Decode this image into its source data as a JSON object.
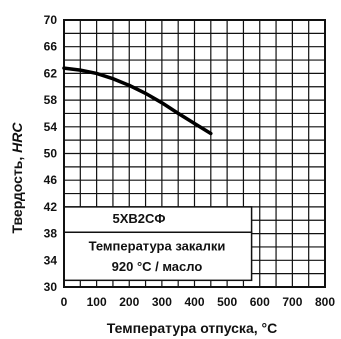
{
  "chart_data": {
    "type": "line",
    "xlabel": "Температура отпуска, °С",
    "ylabel_prefix": "Твердость, ",
    "ylabel_unit": "HRC",
    "xlim": [
      0,
      800
    ],
    "ylim": [
      30,
      70
    ],
    "x_ticks": [
      "0",
      "100",
      "200",
      "300",
      "400",
      "500",
      "600",
      "700",
      "800"
    ],
    "y_ticks": [
      "30",
      "34",
      "38",
      "42",
      "46",
      "50",
      "54",
      "58",
      "62",
      "66",
      "70"
    ],
    "grid": true,
    "grid_minor": {
      "x_step": 50,
      "y_step": 2
    },
    "series": [
      {
        "x": [
          0,
          50,
          100,
          150,
          200,
          250,
          300,
          350,
          400,
          450
        ],
        "y": [
          62.8,
          62.5,
          62.0,
          61.2,
          60.2,
          59.0,
          57.6,
          56.0,
          54.5,
          53.0
        ]
      }
    ],
    "annotations": {
      "steel_grade": "5ХВ2СФ",
      "quench_line1": "Температура закалки",
      "quench_line2": "920 °С / масло"
    }
  }
}
